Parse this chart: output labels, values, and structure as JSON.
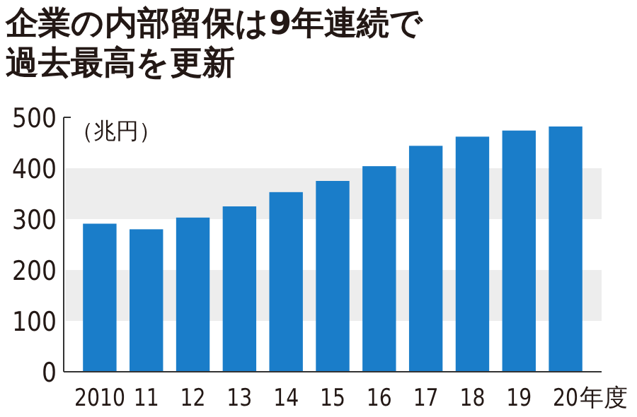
{
  "chart_data": {
    "type": "bar",
    "title": "企業の内部留保は9年連続で過去最高を更新",
    "ylabel": "（兆円）",
    "xlabel": "年度",
    "categories": [
      "2010",
      "11",
      "12",
      "13",
      "14",
      "15",
      "16",
      "17",
      "18",
      "19",
      "20"
    ],
    "values": [
      291,
      280,
      303,
      325,
      353,
      375,
      404,
      444,
      462,
      474,
      482
    ],
    "color": "#1a7dc9",
    "ylim": [
      0,
      500
    ],
    "yticks": [
      0,
      100,
      200,
      300,
      400,
      500
    ],
    "bands": [
      {
        "axis": "y",
        "from": 100,
        "to": 200,
        "color": "#ededed"
      },
      {
        "axis": "y",
        "from": 300,
        "to": 400,
        "color": "#ededed"
      }
    ],
    "grid": false
  }
}
